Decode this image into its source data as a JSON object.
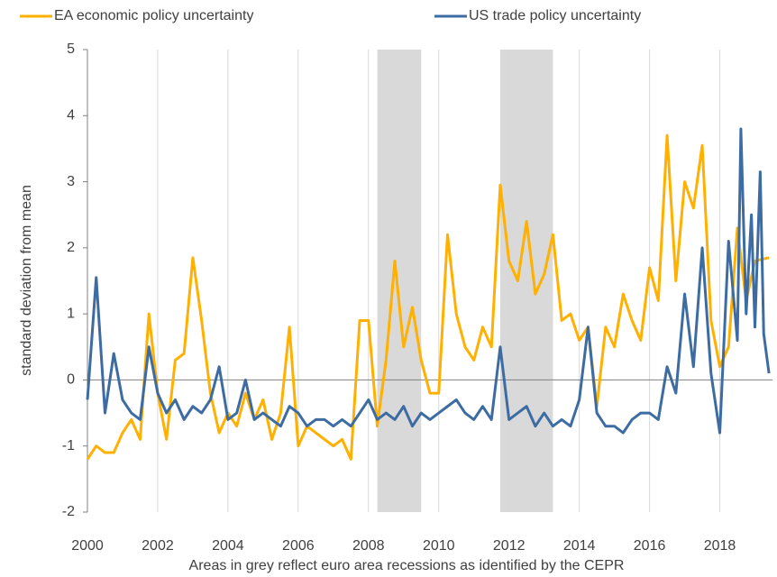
{
  "chart_data": {
    "type": "line",
    "legend": "top",
    "ylabel": "standard deviation from mean",
    "caption": "Areas in grey reflect euro area recessions as identified by the CEPR",
    "xlim": [
      2000,
      2019.5
    ],
    "ylim": [
      -2,
      5
    ],
    "xticks": [
      2000,
      2002,
      2004,
      2006,
      2008,
      2010,
      2012,
      2014,
      2016,
      2018
    ],
    "yticks": [
      -2,
      -1,
      0,
      1,
      2,
      3,
      4,
      5
    ],
    "grid": true,
    "recession_color": "#d9d9d9",
    "recessions": [
      [
        2008.25,
        2009.5
      ],
      [
        2011.75,
        2013.25
      ]
    ],
    "series": [
      {
        "name": "EA economic policy uncertainty",
        "color": "#ffb000",
        "x": [
          2000,
          2000.25,
          2000.5,
          2000.75,
          2001,
          2001.25,
          2001.5,
          2001.75,
          2002,
          2002.25,
          2002.5,
          2002.75,
          2003,
          2003.25,
          2003.5,
          2003.75,
          2004,
          2004.25,
          2004.5,
          2004.75,
          2005,
          2005.25,
          2005.5,
          2005.75,
          2006,
          2006.25,
          2006.5,
          2006.75,
          2007,
          2007.25,
          2007.5,
          2007.75,
          2008,
          2008.25,
          2008.5,
          2008.75,
          2009,
          2009.25,
          2009.5,
          2009.75,
          2010,
          2010.25,
          2010.5,
          2010.75,
          2011,
          2011.25,
          2011.5,
          2011.75,
          2012,
          2012.25,
          2012.5,
          2012.75,
          2013,
          2013.25,
          2013.5,
          2013.75,
          2014,
          2014.25,
          2014.5,
          2014.75,
          2015,
          2015.25,
          2015.5,
          2015.75,
          2016,
          2016.25,
          2016.5,
          2016.75,
          2017,
          2017.25,
          2017.5,
          2017.75,
          2018,
          2018.25,
          2018.5,
          2018.75,
          2019,
          2019.4
        ],
        "values": [
          -1.2,
          -1.0,
          -1.1,
          -1.1,
          -0.8,
          -0.6,
          -0.9,
          1.0,
          -0.2,
          -0.9,
          0.3,
          0.4,
          1.85,
          0.9,
          -0.2,
          -0.8,
          -0.5,
          -0.7,
          -0.2,
          -0.6,
          -0.3,
          -0.9,
          -0.5,
          0.8,
          -1.0,
          -0.7,
          -0.8,
          -0.9,
          -1.0,
          -0.9,
          -1.2,
          0.9,
          0.9,
          -0.7,
          0.3,
          1.8,
          0.5,
          1.1,
          0.3,
          -0.2,
          -0.2,
          2.2,
          1.0,
          0.5,
          0.3,
          0.8,
          0.5,
          2.95,
          1.8,
          1.5,
          2.4,
          1.3,
          1.6,
          2.2,
          0.9,
          1.0,
          0.6,
          0.8,
          -0.4,
          0.8,
          0.5,
          1.3,
          0.9,
          0.6,
          1.7,
          1.2,
          3.7,
          1.5,
          3.0,
          2.6,
          3.55,
          0.9,
          0.2,
          0.5,
          2.3,
          1.2,
          1.8,
          1.85
        ]
      },
      {
        "name": "US trade policy uncertainty",
        "color": "#3d6ca3",
        "x": [
          2000,
          2000.25,
          2000.5,
          2000.75,
          2001,
          2001.25,
          2001.5,
          2001.75,
          2002,
          2002.25,
          2002.5,
          2002.75,
          2003,
          2003.25,
          2003.5,
          2003.75,
          2004,
          2004.25,
          2004.5,
          2004.75,
          2005,
          2005.25,
          2005.5,
          2005.75,
          2006,
          2006.25,
          2006.5,
          2006.75,
          2007,
          2007.25,
          2007.5,
          2007.75,
          2008,
          2008.25,
          2008.5,
          2008.75,
          2009,
          2009.25,
          2009.5,
          2009.75,
          2010,
          2010.25,
          2010.5,
          2010.75,
          2011,
          2011.25,
          2011.5,
          2011.75,
          2012,
          2012.25,
          2012.5,
          2012.75,
          2013,
          2013.25,
          2013.5,
          2013.75,
          2014,
          2014.25,
          2014.5,
          2014.75,
          2015,
          2015.25,
          2015.5,
          2015.75,
          2016,
          2016.25,
          2016.5,
          2016.75,
          2017,
          2017.25,
          2017.5,
          2017.75,
          2018,
          2018.25,
          2018.5,
          2018.6,
          2018.75,
          2018.9,
          2019,
          2019.15,
          2019.25,
          2019.4
        ],
        "values": [
          -0.3,
          1.55,
          -0.5,
          0.4,
          -0.3,
          -0.5,
          -0.6,
          0.5,
          -0.2,
          -0.5,
          -0.3,
          -0.6,
          -0.4,
          -0.5,
          -0.3,
          0.2,
          -0.6,
          -0.5,
          0.0,
          -0.6,
          -0.5,
          -0.6,
          -0.7,
          -0.4,
          -0.5,
          -0.7,
          -0.6,
          -0.6,
          -0.7,
          -0.6,
          -0.7,
          -0.5,
          -0.3,
          -0.6,
          -0.5,
          -0.6,
          -0.4,
          -0.7,
          -0.5,
          -0.6,
          -0.5,
          -0.4,
          -0.3,
          -0.5,
          -0.6,
          -0.4,
          -0.6,
          0.5,
          -0.6,
          -0.5,
          -0.4,
          -0.7,
          -0.5,
          -0.7,
          -0.6,
          -0.7,
          -0.3,
          0.8,
          -0.5,
          -0.7,
          -0.7,
          -0.8,
          -0.6,
          -0.5,
          -0.5,
          -0.6,
          0.2,
          -0.2,
          1.3,
          0.2,
          2.0,
          0.1,
          -0.8,
          2.1,
          0.6,
          3.8,
          1.0,
          2.5,
          0.8,
          3.15,
          0.7,
          0.1
        ]
      }
    ]
  }
}
